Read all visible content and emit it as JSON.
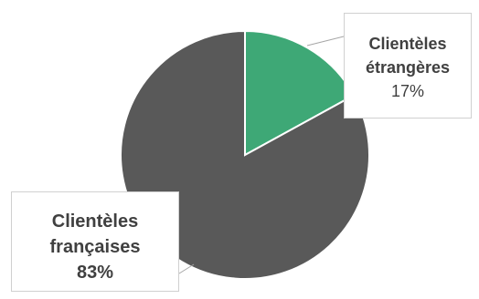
{
  "chart_data": {
    "type": "pie",
    "title": "",
    "slices": [
      {
        "label": "Clientèles étrangères",
        "value": 17,
        "value_label": "17%",
        "color": "#3ea876"
      },
      {
        "label": "Clientèles françaises",
        "value": 83,
        "value_label": "83%",
        "color": "#595959"
      }
    ],
    "start_angle": "12 o'clock",
    "direction": "clockwise",
    "slice_border": "#ffffff"
  },
  "callouts": {
    "etrangeres": {
      "name_line1": "Clientèles",
      "name_line2": "étrangères",
      "pct": "17%"
    },
    "francaises": {
      "name_line1": "Clientèles",
      "name_line2": "françaises",
      "pct": "83%"
    }
  }
}
